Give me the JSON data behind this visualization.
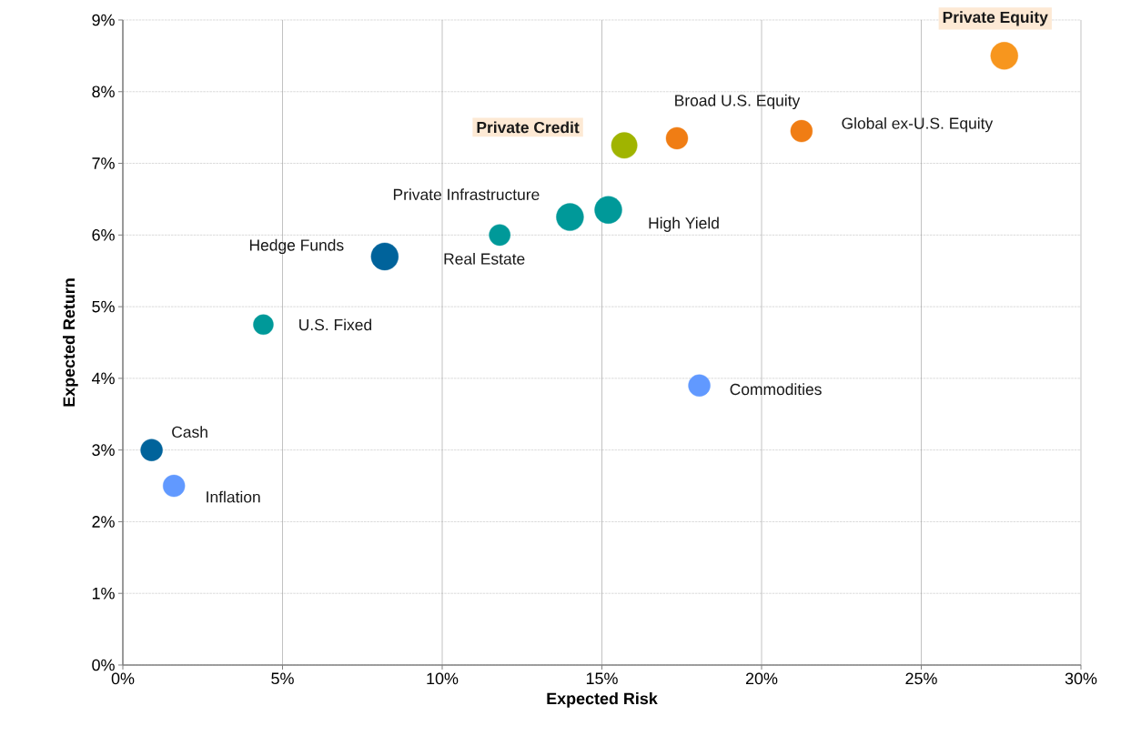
{
  "chart_data": {
    "type": "bubble",
    "xlabel": "Expected Risk",
    "ylabel": "Expected Return",
    "x": [
      0.9,
      1.6,
      4.4,
      8.2,
      11.8,
      14.0,
      15.2,
      15.7,
      17.35,
      21.25,
      27.6,
      18.05
    ],
    "values": [
      3.0,
      2.5,
      4.75,
      5.7,
      6.0,
      6.25,
      6.35,
      7.25,
      7.35,
      7.45,
      8.5,
      3.9
    ],
    "sizes": [
      0.64,
      0.64,
      0.54,
      1,
      0.6,
      1,
      1,
      0.9,
      0.64,
      0.64,
      1,
      0.64
    ],
    "colors": [
      "#00639b",
      "#6199ff",
      "#009999",
      "#00639b",
      "#009999",
      "#009999",
      "#009999",
      "#a0b400",
      "#f07d14",
      "#f07d14",
      "#f7961e",
      "#6199ff"
    ],
    "annotations": [
      {
        "text": "Cash",
        "x": 0.9,
        "y": 3.0
      },
      {
        "text": "Inflation",
        "x": 1.6,
        "y": 2.5
      },
      {
        "text": "U.S. Fixed",
        "x": 4.4,
        "y": 4.75
      },
      {
        "text": "Hedge Funds",
        "x": 8.2,
        "y": 5.7
      },
      {
        "text": "Real Estate",
        "x": 11.8,
        "y": 6.0
      },
      {
        "text": "Private Infrastructure",
        "x": 14.0,
        "y": 6.25
      },
      {
        "text": "High Yield",
        "x": 15.2,
        "y": 6.35
      },
      {
        "text": "**Private Credit**",
        "x": 15.7,
        "y": 7.25
      },
      {
        "text": "Broad U.S. Equity",
        "x": 17.35,
        "y": 7.35
      },
      {
        "text": "Global ex-U.S. Equity",
        "x": 21.25,
        "y": 7.45
      },
      {
        "text": "**Private Equity**",
        "x": 27.6,
        "y": 8.5
      },
      {
        "text": "Commodities",
        "x": 18.05,
        "y": 3.9
      }
    ],
    "xlim": [
      0,
      30
    ],
    "ylim": [
      0,
      9
    ],
    "xticks": [
      {
        "value": 0,
        "label": "0%"
      },
      {
        "value": 5,
        "label": "5%"
      },
      {
        "value": 10,
        "label": "10%"
      },
      {
        "value": 15,
        "label": "15%"
      },
      {
        "value": 20,
        "label": "20%"
      },
      {
        "value": 25,
        "label": "25%"
      },
      {
        "value": 30,
        "label": "30%"
      }
    ],
    "yticks": [
      {
        "value": 0,
        "label": "0%"
      },
      {
        "value": 1,
        "label": "1%"
      },
      {
        "value": 2,
        "label": "2%"
      },
      {
        "value": 3,
        "label": "3%"
      },
      {
        "value": 4,
        "label": "4%"
      },
      {
        "value": 5,
        "label": "5%"
      },
      {
        "value": 6,
        "label": "6%"
      },
      {
        "value": 7,
        "label": "7%"
      },
      {
        "value": 8,
        "label": "8%"
      },
      {
        "value": 9,
        "label": "9%"
      }
    ],
    "grid": true
  }
}
